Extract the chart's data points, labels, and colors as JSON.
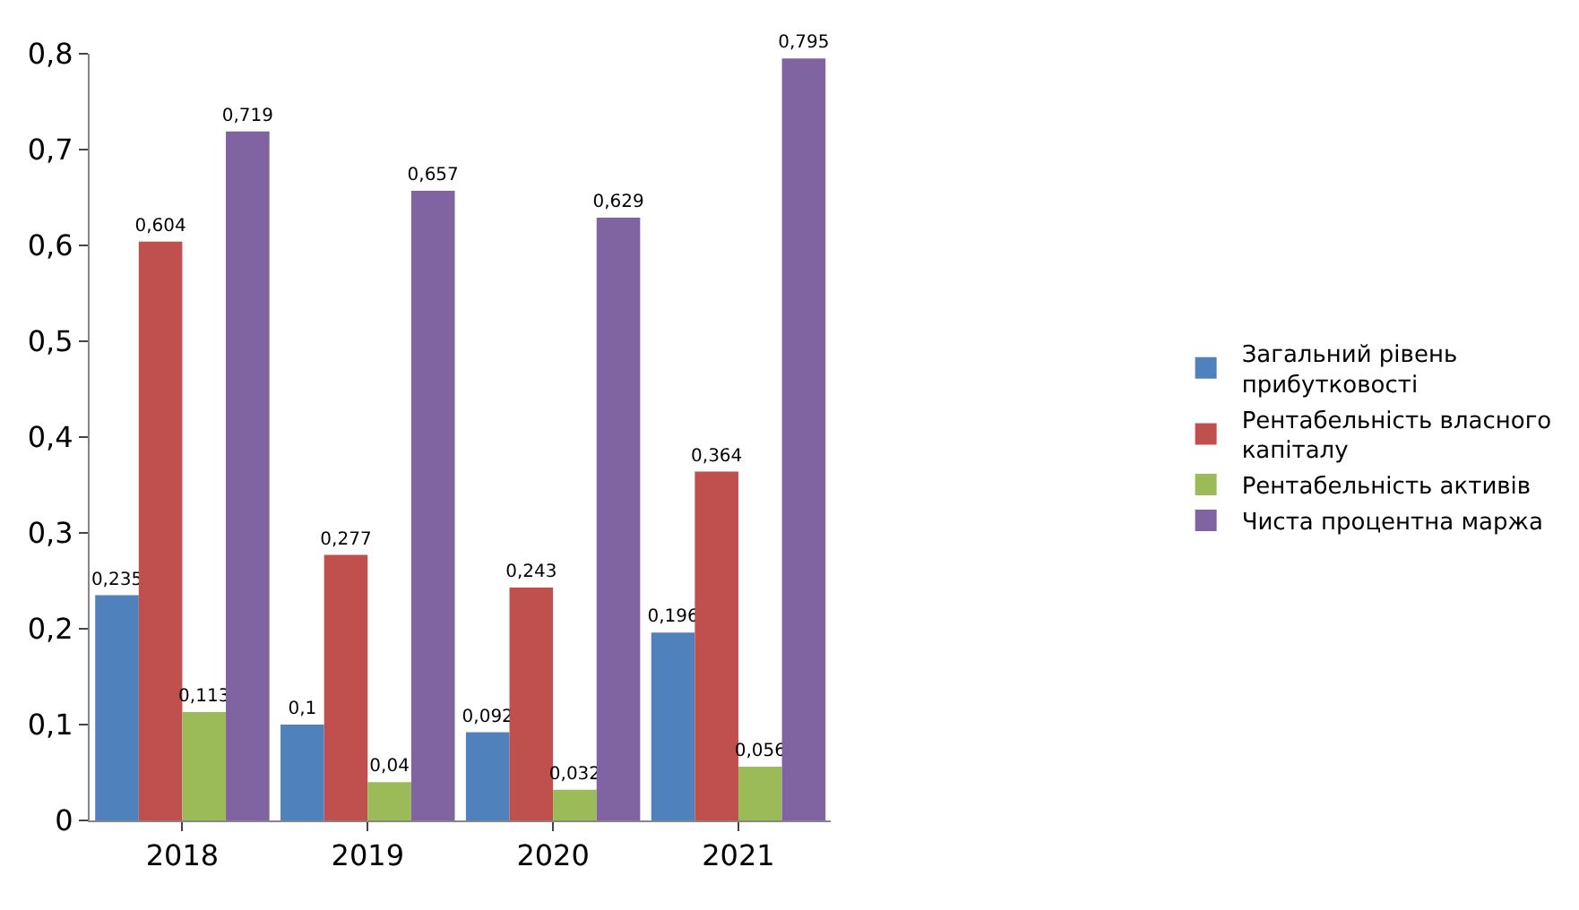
{
  "chart_data": {
    "type": "bar",
    "categories": [
      "2018",
      "2019",
      "2020",
      "2021"
    ],
    "series": [
      {
        "name": "Загальний рівень прибутковості",
        "color": "#4f81bd",
        "values": [
          0.235,
          0.1,
          0.092,
          0.196
        ],
        "value_labels": [
          "0,235",
          "0,1",
          "0,092",
          "0,196"
        ]
      },
      {
        "name": "Рентабельність власного капіталу",
        "color": "#c0504d",
        "values": [
          0.604,
          0.277,
          0.243,
          0.364
        ],
        "value_labels": [
          "0,604",
          "0,277",
          "0,243",
          "0,364"
        ]
      },
      {
        "name": "Рентабельність активів",
        "color": "#9bbb59",
        "values": [
          0.113,
          0.04,
          0.032,
          0.056
        ],
        "value_labels": [
          "0,113",
          "0,04",
          "0,032",
          "0,056"
        ]
      },
      {
        "name": "Чиста процентна маржа",
        "color": "#8064a2",
        "values": [
          0.719,
          0.657,
          0.629,
          0.795
        ],
        "value_labels": [
          "0,719",
          "0,657",
          "0,629",
          "0,795"
        ]
      }
    ],
    "ylim": [
      0,
      0.8
    ],
    "yticks": [
      0,
      {
        "value": 0.1,
        "label": "0,1"
      },
      {
        "value": 0.2,
        "label": "0,2"
      },
      {
        "value": 0.3,
        "label": "0,3"
      },
      {
        "value": 0.4,
        "label": "0,4"
      },
      {
        "value": 0.5,
        "label": "0,5"
      },
      {
        "value": 0.6,
        "label": "0,6"
      },
      {
        "value": 0.7,
        "label": "0,7"
      },
      {
        "value": 0.8,
        "label": "0,8"
      }
    ],
    "grid": false,
    "legend": "right"
  }
}
